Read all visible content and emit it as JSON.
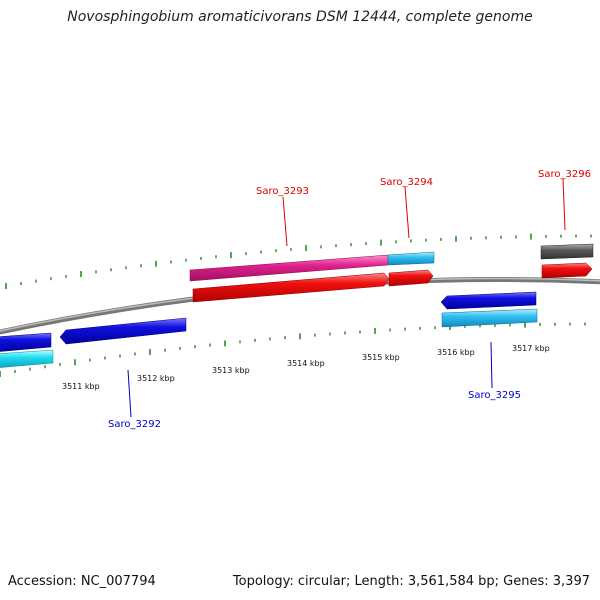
{
  "header": {
    "title": "Novosphingobium aromaticivorans DSM 12444, complete genome"
  },
  "footer": {
    "accession": "Accession: NC_007794",
    "summary": "Topology: circular; Length: 3,561,584 bp; Genes: 3,397"
  },
  "map": {
    "tick_labels": [
      "3511 kbp",
      "3512 kbp",
      "3513 kbp",
      "3514 kbp",
      "3515 kbp",
      "3516 kbp",
      "3517 kbp"
    ],
    "genes": [
      {
        "name": "Saro_3292",
        "strand": "reverse",
        "color": "#0000cc"
      },
      {
        "name": "Saro_3293",
        "strand": "forward",
        "color": "#dd0000"
      },
      {
        "name": "Saro_3294",
        "strand": "forward",
        "color": "#dd0000"
      },
      {
        "name": "Saro_3295",
        "strand": "reverse",
        "color": "#0000cc"
      },
      {
        "name": "Saro_3296",
        "strand": "forward",
        "color": "#dd0000"
      }
    ],
    "colors": {
      "forward_cds": "#e8000a",
      "reverse_cds": "#0f0fd8",
      "pink_feature": "#e0208e",
      "cyan_feature": "#33c8f0",
      "gray_feature": "#606060",
      "backbone": "#8a8a8a",
      "tick": "#2b8a2b"
    }
  }
}
